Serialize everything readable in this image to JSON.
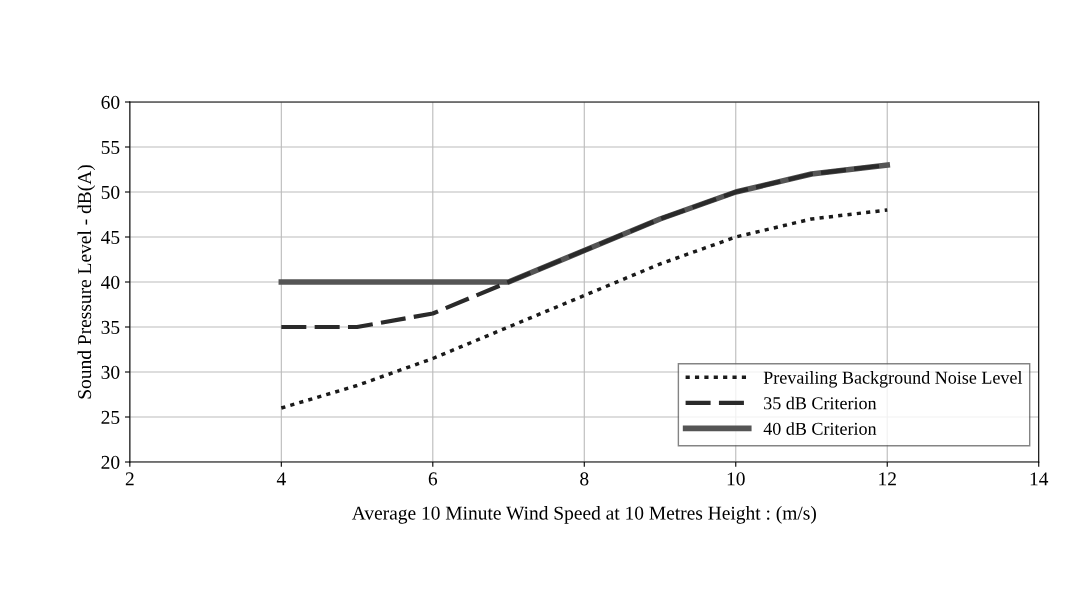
{
  "chart_data": {
    "type": "line",
    "xlabel": "Average 10 Minute Wind Speed at 10 Metres Height : (m/s)",
    "ylabel": "Sound Pressure Level - dB(A)",
    "x": [
      4,
      5,
      6,
      7,
      8,
      9,
      10,
      11,
      12
    ],
    "series": [
      {
        "name": "Prevailing Background Noise Level",
        "color": "#1a1a1a",
        "line_style": "dotted",
        "values": [
          26,
          28.5,
          31.5,
          35,
          38.5,
          42,
          45,
          47,
          48
        ]
      },
      {
        "name": "35 dB Criterion",
        "color": "#2a2a2a",
        "line_style": "dashed",
        "values": [
          35,
          35,
          36.5,
          40,
          43.5,
          47,
          50,
          52,
          53
        ]
      },
      {
        "name": "40 dB Criterion",
        "color": "#555555",
        "line_style": "solid",
        "values": [
          40,
          40,
          40,
          40,
          43.5,
          47,
          50,
          52,
          53
        ]
      }
    ],
    "xlim": [
      2,
      14
    ],
    "xticks": [
      2,
      4,
      6,
      8,
      10,
      12,
      14
    ],
    "ylim": [
      20,
      60
    ],
    "yticks": [
      20,
      25,
      30,
      35,
      40,
      45,
      50,
      55,
      60
    ],
    "grid": true,
    "legend": "bottom right",
    "marker": "none"
  }
}
